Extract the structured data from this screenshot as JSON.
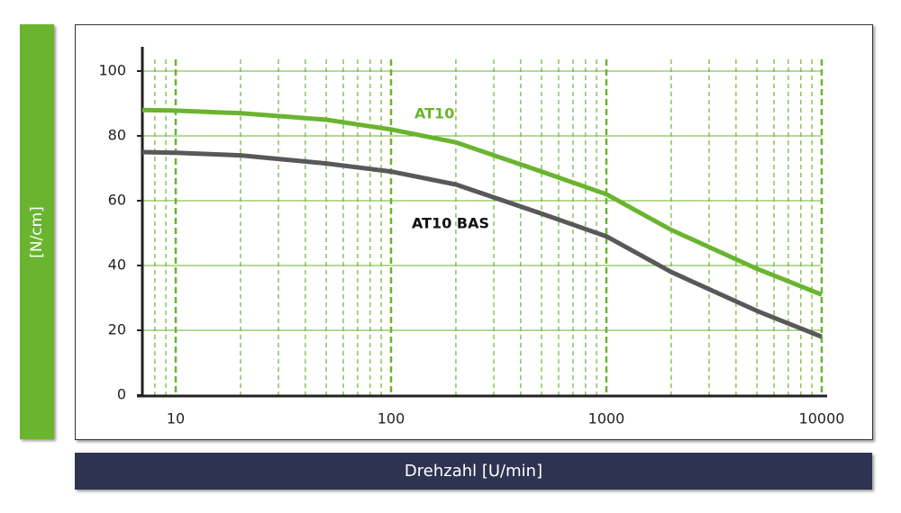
{
  "chart_data": {
    "type": "line",
    "x_label": "Drehzahl [U/min]",
    "y_label": "[N/cm]",
    "x": [
      7,
      10,
      20,
      50,
      100,
      200,
      500,
      1000,
      2000,
      5000,
      10000
    ],
    "series": [
      {
        "name": "AT10",
        "color": "#6ab42f",
        "values": [
          88,
          87.8,
          87,
          85,
          82,
          78,
          69,
          62,
          51,
          39,
          31
        ]
      },
      {
        "name": "AT10 BAS",
        "color": "#58585a",
        "values": [
          75,
          74.8,
          74,
          71.5,
          69,
          65,
          56,
          49,
          38,
          26,
          18
        ]
      }
    ],
    "xlim": [
      7,
      10000
    ],
    "xticks": [
      10,
      100,
      1000,
      10000
    ],
    "xscale": "log",
    "ylim": [
      0,
      107.5
    ],
    "yticks": [
      0,
      20,
      40,
      60,
      80,
      100
    ],
    "grid": true,
    "grid_color": "#6ab42f"
  }
}
